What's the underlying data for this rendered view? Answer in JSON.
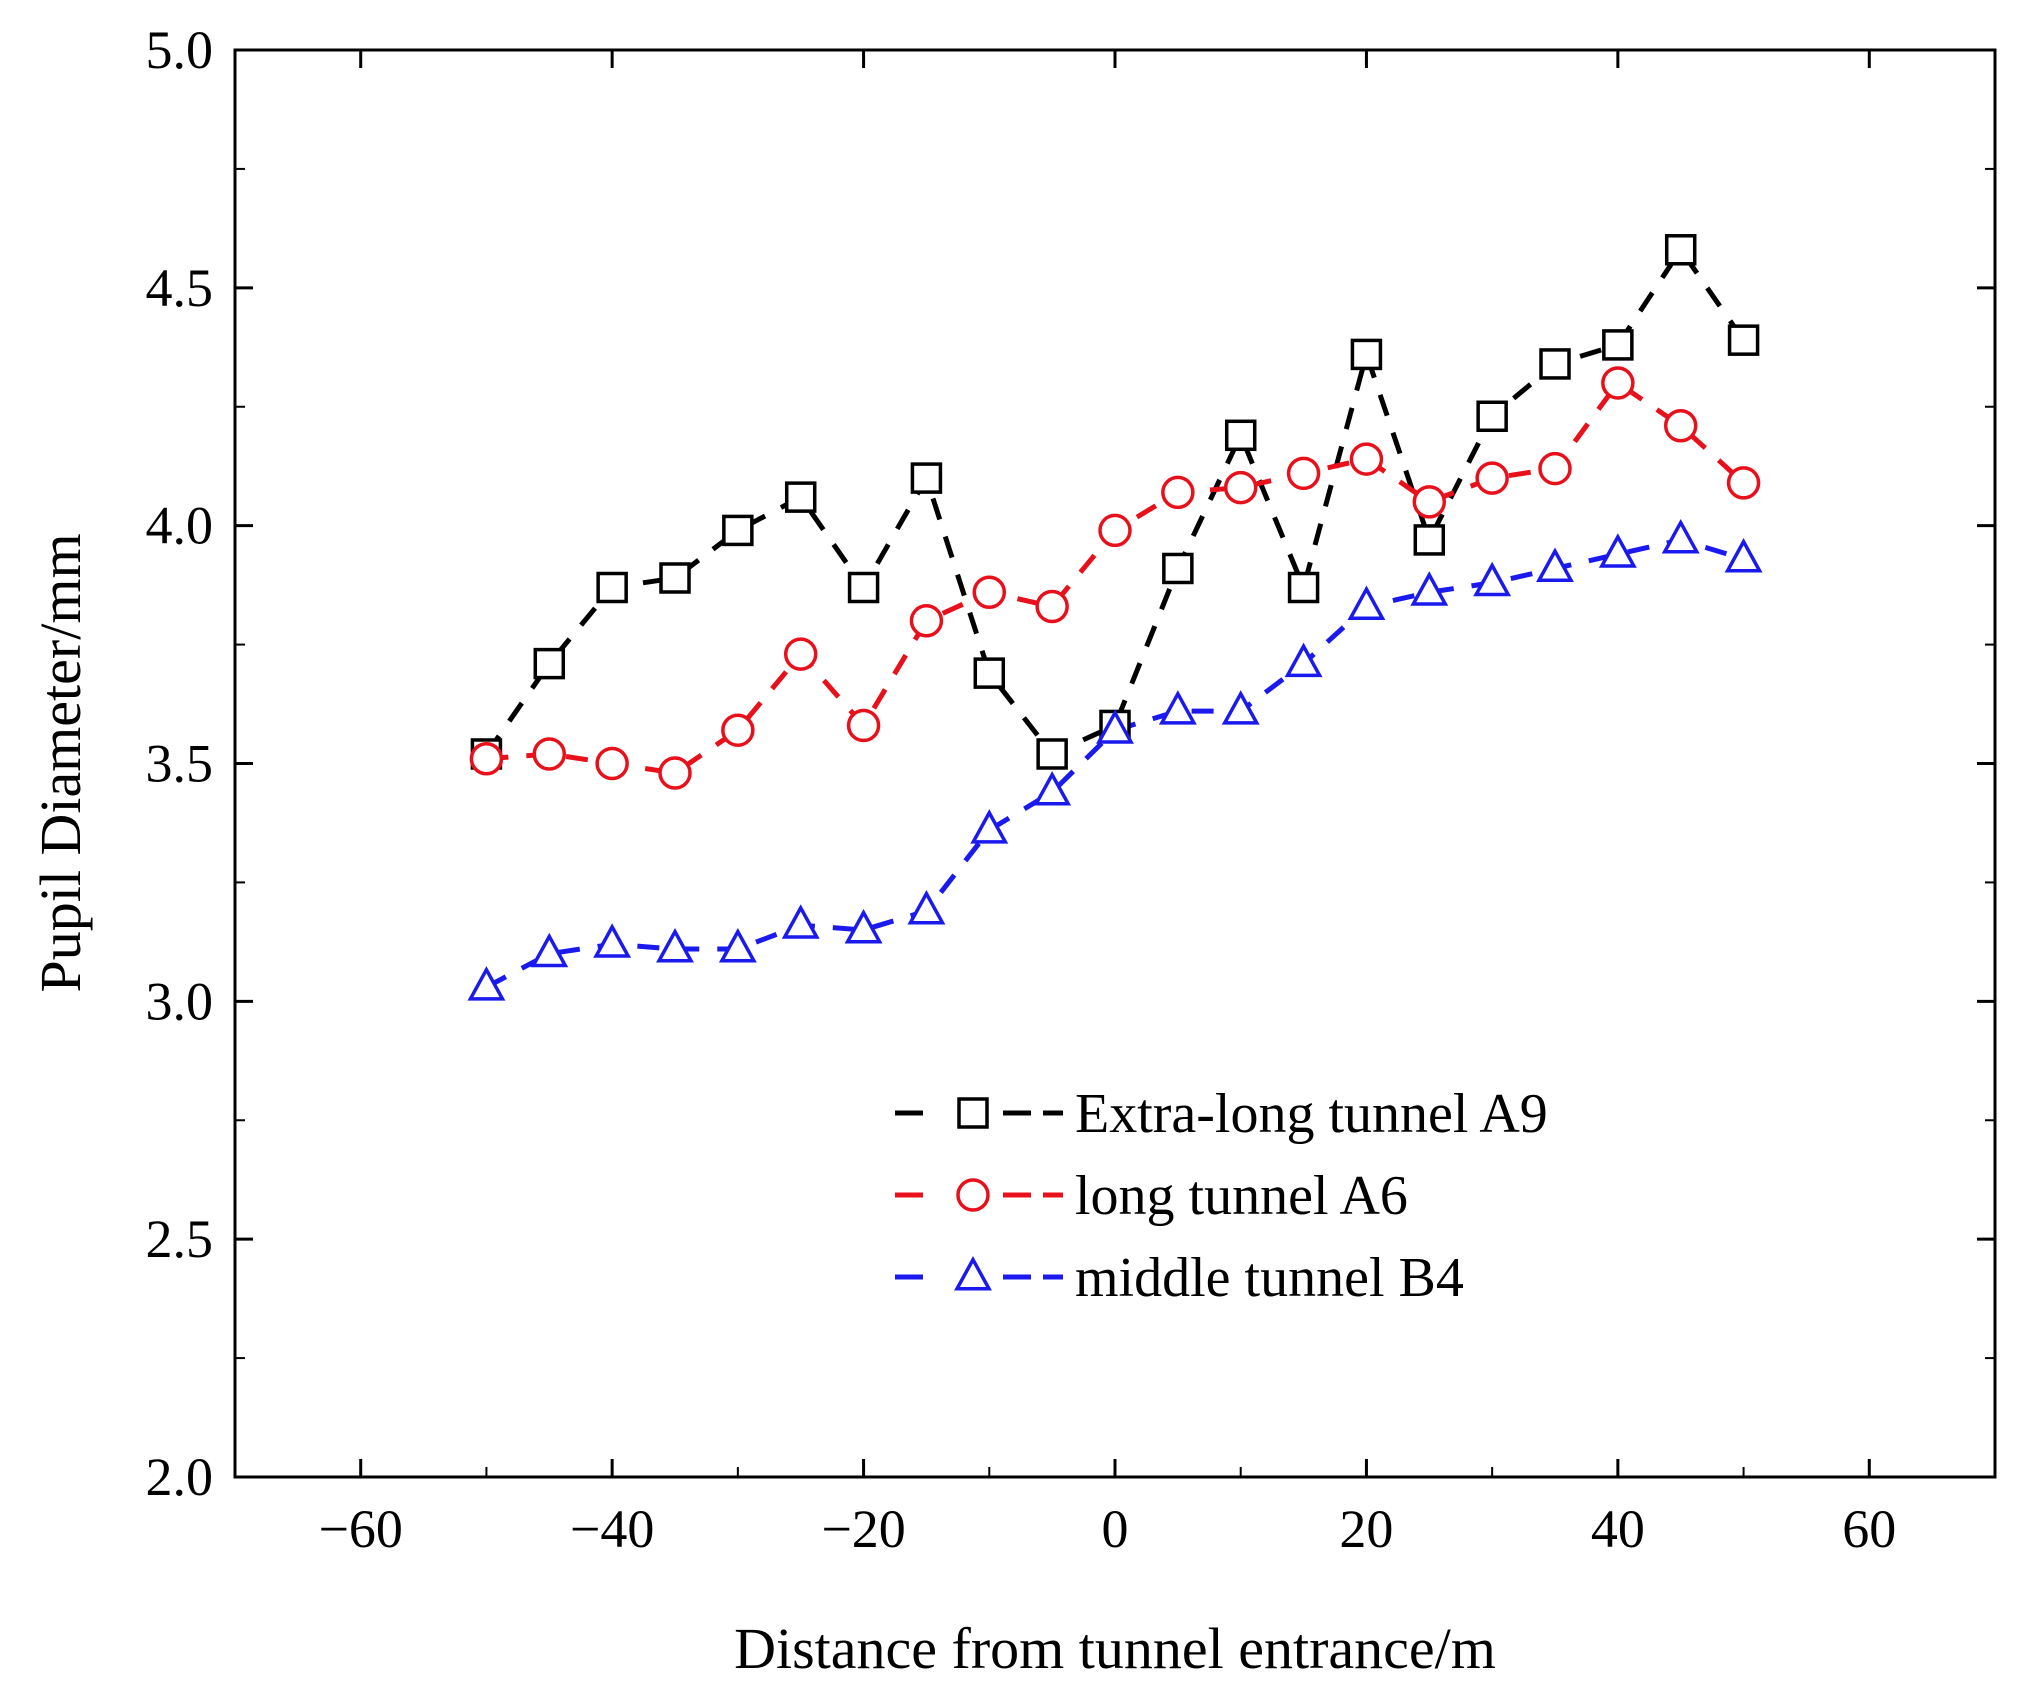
{
  "chart_data": {
    "type": "line",
    "title": "",
    "xlabel": "Distance from tunnel entrance/m",
    "ylabel": "Pupil Diameter/mm",
    "xlim": [
      -70,
      70
    ],
    "ylim": [
      2.0,
      5.0
    ],
    "xticks": [
      -60,
      -40,
      -20,
      0,
      20,
      40,
      60
    ],
    "xtick_labels": [
      "−60",
      "−40",
      "−20",
      "0",
      "20",
      "40",
      "60"
    ],
    "yticks": [
      2.0,
      2.5,
      3.0,
      3.5,
      4.0,
      4.5,
      5.0
    ],
    "ytick_labels": [
      "2.0",
      "2.5",
      "3.0",
      "3.5",
      "4.0",
      "4.5",
      "5.0"
    ],
    "grid": false,
    "legend_position": "lower-right",
    "x": [
      -50,
      -45,
      -40,
      -35,
      -30,
      -25,
      -20,
      -15,
      -10,
      -5,
      0,
      5,
      10,
      15,
      20,
      25,
      30,
      35,
      40,
      45,
      50
    ],
    "series": [
      {
        "name": "Extra-long tunnel A9",
        "color": "#000000",
        "marker": "square",
        "values": [
          3.52,
          3.71,
          3.87,
          3.89,
          3.99,
          4.06,
          3.87,
          4.1,
          3.69,
          3.52,
          3.58,
          3.91,
          4.19,
          3.87,
          4.36,
          3.97,
          4.23,
          4.34,
          4.38,
          4.58,
          4.39
        ]
      },
      {
        "name": "long tunnel A6",
        "color": "#e8101a",
        "marker": "circle",
        "values": [
          3.51,
          3.52,
          3.5,
          3.48,
          3.57,
          3.73,
          3.58,
          3.8,
          3.86,
          3.83,
          3.99,
          4.07,
          4.08,
          4.11,
          4.14,
          4.05,
          4.1,
          4.12,
          4.3,
          4.21,
          4.09
        ]
      },
      {
        "name": "middle tunnel B4",
        "color": "#1a1aee",
        "marker": "triangle",
        "values": [
          3.03,
          3.1,
          3.12,
          3.11,
          3.11,
          3.16,
          3.15,
          3.19,
          3.36,
          3.44,
          3.57,
          3.61,
          3.61,
          3.71,
          3.83,
          3.86,
          3.88,
          3.91,
          3.94,
          3.97,
          3.93
        ]
      }
    ]
  }
}
